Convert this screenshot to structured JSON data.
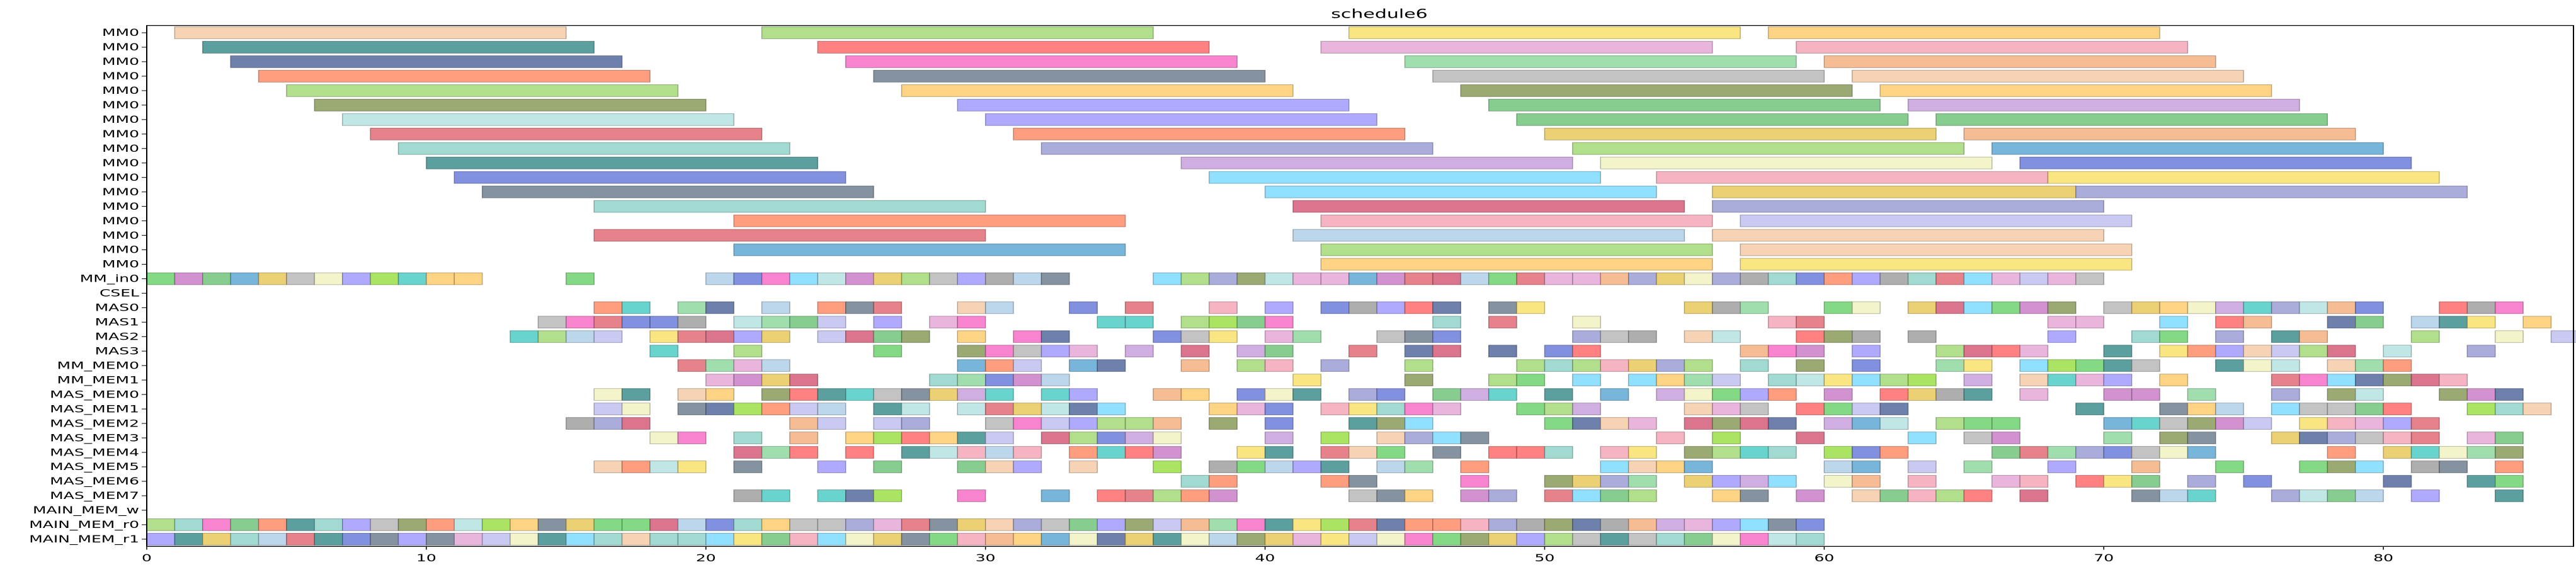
{
  "chart_data": {
    "type": "gantt",
    "title": "schedule6",
    "xlabel": "",
    "ylabel": "",
    "xlim": [
      0,
      86.8
    ],
    "x_ticks": [
      0,
      10,
      20,
      30,
      40,
      50,
      60,
      70,
      80
    ],
    "grid": false,
    "legend": "none",
    "rows": [
      "MM0",
      "MM0",
      "MM0",
      "MM0",
      "MM0",
      "MM0",
      "MM0",
      "MM0",
      "MM0",
      "MM0",
      "MM0",
      "MM0",
      "MM0",
      "MM0",
      "MM0",
      "MM0",
      "MM0",
      "MM_in0",
      "CSEL",
      "MAS0",
      "MAS1",
      "MAS2",
      "MAS3",
      "MM_MEM0",
      "MM_MEM1",
      "MAS_MEM0",
      "MAS_MEM1",
      "MAS_MEM2",
      "MAS_MEM3",
      "MAS_MEM4",
      "MAS_MEM5",
      "MAS_MEM6",
      "MAS_MEM7",
      "MAIN_MEM_w",
      "MAIN_MEM_r0",
      "MAIN_MEM_r1"
    ],
    "mm0_bars": [
      [
        [
          1,
          15
        ],
        [
          22,
          36
        ],
        [
          43,
          57
        ],
        [
          58,
          72
        ]
      ],
      [
        [
          2,
          16
        ],
        [
          24,
          38
        ],
        [
          42,
          56
        ],
        [
          59,
          73
        ]
      ],
      [
        [
          3,
          17
        ],
        [
          25,
          39
        ],
        [
          45,
          59
        ],
        [
          60,
          74
        ]
      ],
      [
        [
          4,
          18
        ],
        [
          26,
          40
        ],
        [
          46,
          60
        ],
        [
          61,
          75
        ]
      ],
      [
        [
          5,
          19
        ],
        [
          27,
          41
        ],
        [
          47,
          61
        ],
        [
          62,
          76
        ]
      ],
      [
        [
          6,
          20
        ],
        [
          29,
          43
        ],
        [
          48,
          62
        ],
        [
          63,
          77
        ]
      ],
      [
        [
          7,
          21
        ],
        [
          30,
          44
        ],
        [
          49,
          63
        ],
        [
          64,
          78
        ]
      ],
      [
        [
          8,
          22
        ],
        [
          31,
          45
        ],
        [
          50,
          64
        ],
        [
          65,
          79
        ]
      ],
      [
        [
          9,
          23
        ],
        [
          32,
          46
        ],
        [
          51,
          65
        ],
        [
          66,
          80
        ]
      ],
      [
        [
          10,
          24
        ],
        [
          37,
          51
        ],
        [
          52,
          66
        ],
        [
          67,
          81
        ]
      ],
      [
        [
          11,
          25
        ],
        [
          38,
          52
        ],
        [
          54,
          68
        ],
        [
          68,
          82
        ]
      ],
      [
        [
          12,
          26
        ],
        [
          40,
          54
        ],
        [
          56,
          69
        ],
        [
          69,
          83
        ]
      ],
      [
        [
          16,
          30
        ],
        [
          41,
          55
        ],
        [
          56,
          70
        ]
      ],
      [
        [
          21,
          35
        ],
        [
          42,
          56
        ],
        [
          57,
          71
        ]
      ]
    ],
    "mm_in0_range": [
      0,
      12
    ],
    "mm_in0_cells": [
      15,
      20,
      21,
      22,
      23,
      24,
      25,
      26,
      27,
      28,
      29,
      30,
      31,
      32,
      36,
      37,
      38,
      39,
      40,
      41,
      42,
      43,
      44,
      45,
      46,
      47,
      48,
      49,
      50,
      51,
      52,
      53,
      54,
      55,
      56,
      57,
      58,
      59,
      60,
      61,
      62,
      63,
      64,
      65,
      66,
      67,
      68,
      69
    ],
    "unit_rows": [
      {
        "start": 16,
        "end": 87,
        "density": 0.72
      },
      {
        "start": 14,
        "end": 86,
        "density": 0.55
      },
      {
        "start": 13,
        "end": 87,
        "density": 0.58
      },
      {
        "start": 17,
        "end": 86,
        "density": 0.5
      },
      {
        "start": 19,
        "end": 83,
        "density": 0.6
      },
      {
        "start": 19,
        "end": 83,
        "density": 0.62
      },
      {
        "start": 16,
        "end": 85,
        "density": 0.62
      },
      {
        "start": 16,
        "end": 86,
        "density": 0.58
      },
      {
        "start": 15,
        "end": 82,
        "density": 0.55
      },
      {
        "start": 15,
        "end": 86,
        "density": 0.58
      },
      {
        "start": 20,
        "end": 85,
        "density": 0.6
      },
      {
        "start": 16,
        "end": 85,
        "density": 0.58
      },
      {
        "start": 36,
        "end": 85,
        "density": 0.62
      },
      {
        "start": 20,
        "end": 85,
        "density": 0.62
      }
    ],
    "main_mem_rows": [
      {
        "start": 0,
        "end": 60
      },
      {
        "start": 0,
        "end": 60
      }
    ],
    "palette": [
      "#b0d0e8",
      "#b5e2e2",
      "#f4b183",
      "#f76fc7",
      "#3e8e8e",
      "#f8e16c",
      "#a3d977",
      "#9b9dd6",
      "#e6a8d7",
      "#6fd36f",
      "#c9a0dc",
      "#e06c75",
      "#6b7cd9",
      "#8fd3c9",
      "#b9b9b9",
      "#f5cba7",
      "#8a9a5b",
      "#d45d79",
      "#7fdbff",
      "#c0c0f0",
      "#f2f2c2",
      "#a0a0a0",
      "#ff8c69",
      "#72c47d",
      "#5fa8d3",
      "#e8c95b",
      "#c97fc7",
      "#8fd8a0",
      "#708090",
      "#f4a7b9",
      "#556b9f",
      "#9bdf46",
      "#ff6b6b",
      "#4ecdc4",
      "#a29bfe",
      "#fdcb6e"
    ]
  }
}
